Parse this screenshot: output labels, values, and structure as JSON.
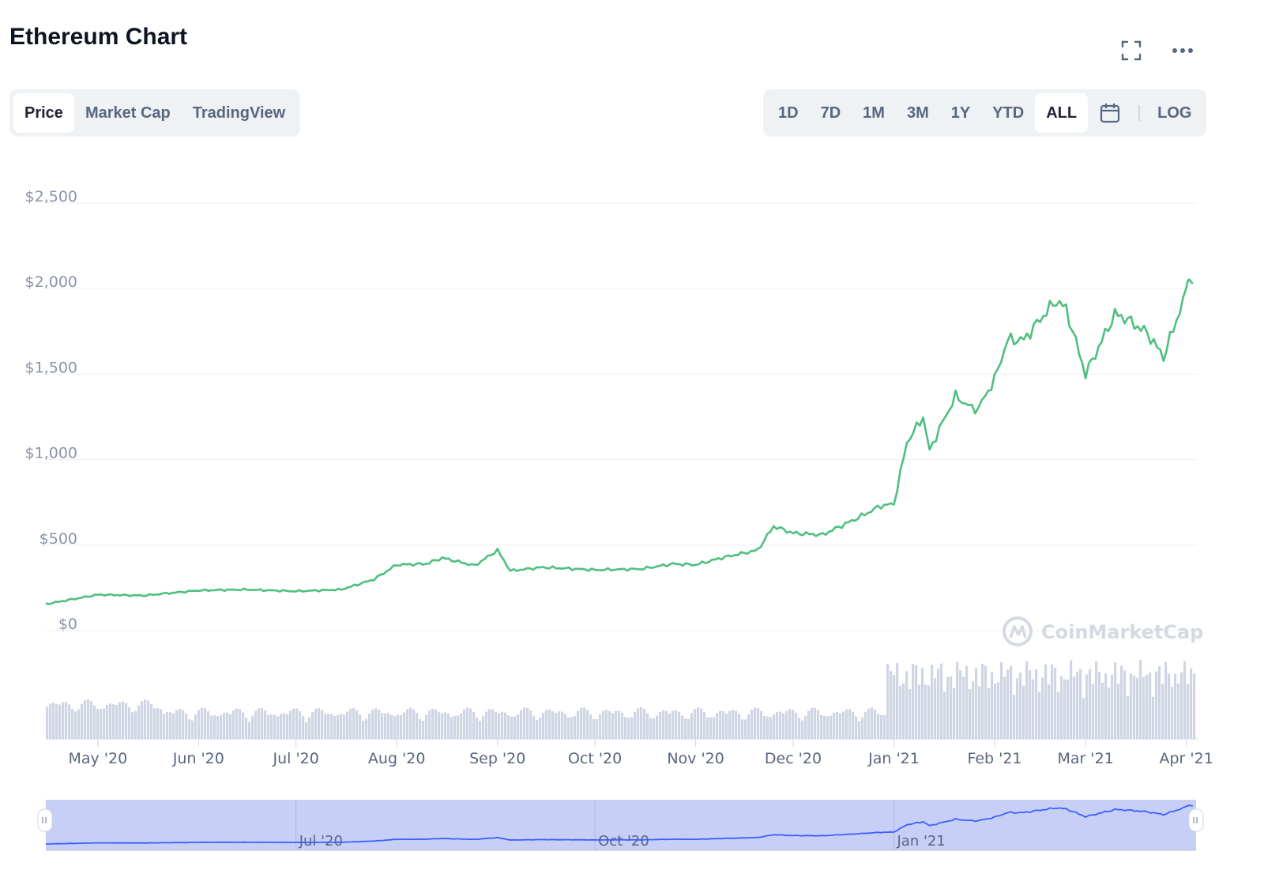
{
  "header": {
    "title": "Ethereum Chart",
    "fullscreen_icon": "expand-icon",
    "more_icon": "more-horizontal-icon"
  },
  "view_tabs": [
    {
      "label": "Price",
      "active": true
    },
    {
      "label": "Market Cap",
      "active": false
    },
    {
      "label": "TradingView",
      "active": false
    }
  ],
  "range_tabs": [
    {
      "label": "1D",
      "active": false
    },
    {
      "label": "7D",
      "active": false
    },
    {
      "label": "1M",
      "active": false
    },
    {
      "label": "3M",
      "active": false
    },
    {
      "label": "1Y",
      "active": false
    },
    {
      "label": "YTD",
      "active": false
    },
    {
      "label": "ALL",
      "active": true
    }
  ],
  "calendar_icon": "calendar-icon",
  "log_label": "LOG",
  "watermark": "CoinMarketCap",
  "colors": {
    "price_line": "#4fbf7f",
    "volume": "#cfd5e3",
    "navigator_fill": "#c8cff7",
    "navigator_line": "#3861fb"
  },
  "chart_data": {
    "type": "line",
    "series_name": "Price",
    "yticks": [
      "$0",
      "$500",
      "$1,000",
      "$1,500",
      "$2,000",
      "$2,500"
    ],
    "ylim": [
      0,
      2500
    ],
    "xticks": [
      "May '20",
      "Jun '20",
      "Jul '20",
      "Aug '20",
      "Sep '20",
      "Oct '20",
      "Nov '20",
      "Dec '20",
      "Jan '21",
      "Feb '21",
      "Mar '21",
      "Apr '21"
    ],
    "navigator_ticks": [
      "Jul '20",
      "Oct '20",
      "Jan '21"
    ],
    "x_dates": [
      "2020-04-15",
      "2020-05-01",
      "2020-05-15",
      "2020-06-01",
      "2020-06-15",
      "2020-07-01",
      "2020-07-15",
      "2020-07-25",
      "2020-08-01",
      "2020-08-10",
      "2020-08-15",
      "2020-08-25",
      "2020-09-01",
      "2020-09-05",
      "2020-09-15",
      "2020-10-01",
      "2020-10-15",
      "2020-10-25",
      "2020-11-01",
      "2020-11-10",
      "2020-11-20",
      "2020-11-25",
      "2020-12-01",
      "2020-12-10",
      "2020-12-20",
      "2020-12-28",
      "2021-01-01",
      "2021-01-05",
      "2021-01-10",
      "2021-01-12",
      "2021-01-15",
      "2021-01-20",
      "2021-01-25",
      "2021-01-27",
      "2021-02-01",
      "2021-02-05",
      "2021-02-10",
      "2021-02-15",
      "2021-02-20",
      "2021-02-23",
      "2021-03-01",
      "2021-03-10",
      "2021-03-13",
      "2021-03-20",
      "2021-03-25",
      "2021-04-01",
      "2021-04-02",
      "2021-04-03"
    ],
    "price": [
      155,
      210,
      205,
      235,
      240,
      230,
      240,
      300,
      385,
      390,
      425,
      380,
      470,
      350,
      370,
      355,
      360,
      390,
      385,
      430,
      470,
      610,
      570,
      560,
      650,
      730,
      740,
      1100,
      1250,
      1050,
      1180,
      1370,
      1300,
      1300,
      1470,
      1700,
      1700,
      1820,
      1930,
      1880,
      1500,
      1850,
      1830,
      1740,
      1600,
      1980,
      2100,
      2030
    ],
    "volume_note": "Trading volume bars (relative, unlabeled)"
  }
}
